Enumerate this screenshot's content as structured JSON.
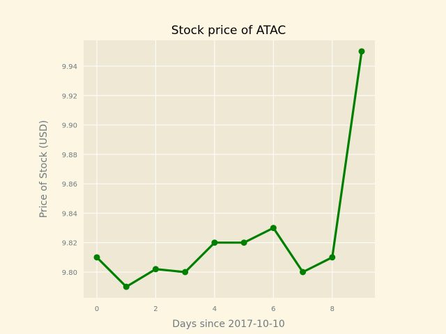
{
  "chart_data": {
    "type": "line",
    "title": "Stock price of ATAC",
    "xlabel": "Days since 2017-10-10",
    "ylabel": "Price of Stock (USD)",
    "x": [
      0,
      1,
      2,
      3,
      4,
      5,
      6,
      7,
      8,
      9
    ],
    "series": [
      {
        "values": [
          9.81,
          9.79,
          9.802,
          9.8,
          9.82,
          9.82,
          9.83,
          9.8,
          9.81,
          9.95
        ],
        "color": "#008000",
        "marker": "circle"
      }
    ],
    "xlim": [
      -0.45,
      9.45
    ],
    "ylim": [
      9.7825,
      9.9575
    ],
    "xticks": [
      0,
      2,
      4,
      6,
      8
    ],
    "xtick_labels": [
      "0",
      "2",
      "4",
      "6",
      "8"
    ],
    "yticks": [
      9.8,
      9.82,
      9.84,
      9.86,
      9.88,
      9.9,
      9.92,
      9.94
    ],
    "ytick_labels": [
      "9.80",
      "9.82",
      "9.84",
      "9.86",
      "9.88",
      "9.90",
      "9.92",
      "9.94"
    ],
    "grid": true,
    "legend": "none"
  },
  "colors": {
    "figure_background": "#fdf6e3",
    "plot_background": "#eee8d5",
    "grid": "#ffffff",
    "text": "#6e7b7f",
    "title": "#000000"
  }
}
